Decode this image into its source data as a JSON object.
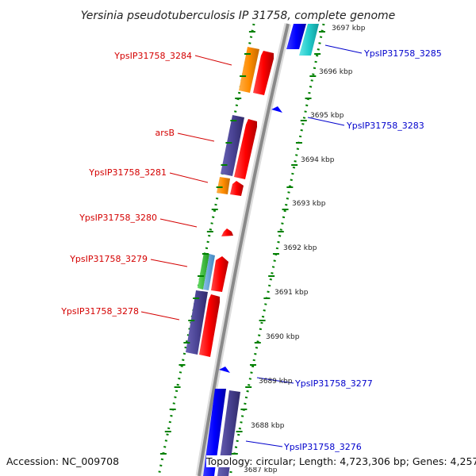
{
  "title": "Yersinia pseudotuberculosis IP 31758, complete genome",
  "footer": {
    "accession": "Accession: NC_009708",
    "topology": "Topology: circular; Length: 4,723,306 bp; Genes: 4,257"
  },
  "colors": {
    "forward_cds": "#ff0000",
    "reverse_cds": "#0000ff",
    "cog_purple": "#4b4495",
    "cog_orange": "#ff8c00",
    "cog_cyan": "#22cccc",
    "cog_green": "#33bb33",
    "cog_lightblue": "#5fa3d6",
    "backbone": "#888888",
    "ticks": "#008000",
    "label_red": "#d40000",
    "label_blue": "#0000cc"
  },
  "scale": {
    "unit": "kbp",
    "ticks": [
      "3697 kbp",
      "3696 kbp",
      "3695 kbp",
      "3694 kbp",
      "3693 kbp",
      "3692 kbp",
      "3691 kbp",
      "3690 kbp",
      "3689 kbp",
      "3688 kbp",
      "3687 kbp"
    ]
  },
  "genes": [
    {
      "label": "YpsIP31758_3285",
      "strand": "reverse"
    },
    {
      "label": "YpsIP31758_3284",
      "strand": "forward"
    },
    {
      "label": "YpsIP31758_3283",
      "strand": "reverse"
    },
    {
      "label": "arsB",
      "strand": "forward"
    },
    {
      "label": "YpsIP31758_3281",
      "strand": "forward"
    },
    {
      "label": "YpsIP31758_3280",
      "strand": "forward"
    },
    {
      "label": "YpsIP31758_3279",
      "strand": "forward"
    },
    {
      "label": "YpsIP31758_3278",
      "strand": "forward"
    },
    {
      "label": "YpsIP31758_3277",
      "strand": "reverse"
    },
    {
      "label": "YpsIP31758_3276",
      "strand": "reverse"
    }
  ]
}
